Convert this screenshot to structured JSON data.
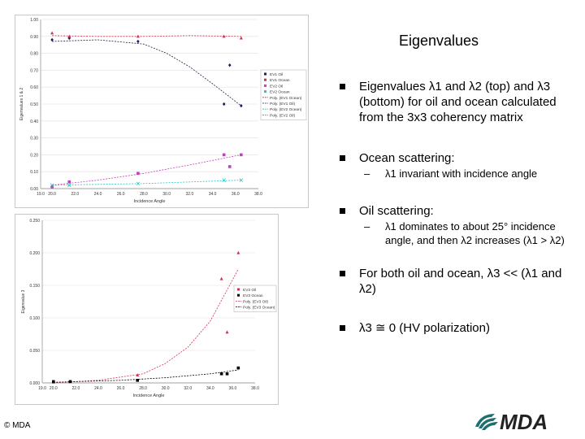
{
  "slide": {
    "title": "Eigenvalues",
    "copyright": "© MDA",
    "logo_text": "MDA"
  },
  "bullets": [
    {
      "text": "Eigenvalues λ1 and λ2 (top) and λ3 (bottom) for oil and ocean calculated from the 3x3 coherency matrix"
    },
    {
      "text": "Ocean scattering:",
      "sub": "λ1 invariant with incidence angle"
    },
    {
      "text": "Oil scattering:",
      "sub": "λ1 dominates to about 25° incidence angle, and then λ2 increases (λ1 > λ2)"
    },
    {
      "text": "For both oil and ocean, λ3 << (λ1 and λ2)"
    },
    {
      "text": "λ3 ≅ 0 (HV polarization)"
    }
  ],
  "chart_data": [
    {
      "type": "scatter",
      "xlabel": "Incidence Angle",
      "ylabel": "Eigenvalues 1 & 2",
      "xlim": [
        19.0,
        38.0
      ],
      "ylim": [
        0.0,
        1.0
      ],
      "x_ticks": [
        "19.0",
        "20.0",
        "22.0",
        "24.0",
        "26.0",
        "28.0",
        "30.0",
        "32.0",
        "34.0",
        "36.0",
        "38.0"
      ],
      "y_ticks": [
        "0.00",
        "0.10",
        "0.20",
        "0.30",
        "0.40",
        "0.50",
        "0.60",
        "0.70",
        "0.80",
        "0.90",
        "1.00"
      ],
      "legend_position": "right",
      "series": [
        {
          "name": "EV1 Oil",
          "color": "#1a1a6e",
          "marker": "diamond",
          "x": [
            20.0,
            21.5,
            27.5,
            35.0,
            35.5,
            36.5
          ],
          "y": [
            0.88,
            0.89,
            0.87,
            0.5,
            0.73,
            0.49
          ]
        },
        {
          "name": "EV1 Ocean",
          "color": "#d03050",
          "marker": "triangle",
          "x": [
            20.0,
            21.5,
            27.5,
            35.0,
            36.5
          ],
          "y": [
            0.92,
            0.9,
            0.9,
            0.9,
            0.89
          ]
        },
        {
          "name": "EV2 Oil",
          "color": "#c040c0",
          "marker": "square",
          "x": [
            20.0,
            21.5,
            27.5,
            35.0,
            35.5,
            36.5
          ],
          "y": [
            0.01,
            0.04,
            0.09,
            0.2,
            0.13,
            0.2
          ]
        },
        {
          "name": "EV2 Ocean",
          "color": "#30c0c0",
          "marker": "cross",
          "x": [
            20.0,
            21.5,
            27.5,
            35.0,
            36.5
          ],
          "y": [
            0.02,
            0.02,
            0.03,
            0.05,
            0.05
          ]
        }
      ],
      "trendlines": [
        {
          "name": "Poly. (EV1 Ocean)",
          "color": "#d03050",
          "x": [
            20,
            24,
            28,
            32,
            36.5
          ],
          "y": [
            0.905,
            0.9,
            0.9,
            0.905,
            0.9
          ]
        },
        {
          "name": "Poly. (EV1 Oil)",
          "color": "#222244",
          "x": [
            20,
            24,
            28,
            30,
            32,
            34,
            36.5
          ],
          "y": [
            0.87,
            0.88,
            0.855,
            0.8,
            0.72,
            0.62,
            0.49
          ]
        },
        {
          "name": "Poly. (EV2 Ocean)",
          "color": "#30c0c0",
          "x": [
            20,
            28,
            36.5
          ],
          "y": [
            0.02,
            0.03,
            0.05
          ]
        },
        {
          "name": "Poly. (EV2 Oil)",
          "color": "#c040c0",
          "x": [
            20,
            24,
            28,
            32,
            36.5
          ],
          "y": [
            0.02,
            0.05,
            0.09,
            0.14,
            0.2
          ]
        }
      ]
    },
    {
      "type": "scatter",
      "xlabel": "Incidence Angle",
      "ylabel": "Eigenvalue 3",
      "xlim": [
        19.0,
        38.0
      ],
      "ylim": [
        0.0,
        0.25
      ],
      "x_ticks": [
        "19.0",
        "20.0",
        "22.0",
        "24.0",
        "26.0",
        "28.0",
        "30.0",
        "32.0",
        "34.0",
        "36.0",
        "38.0"
      ],
      "y_ticks": [
        "0.000",
        "0.050",
        "0.100",
        "0.150",
        "0.200",
        "0.250"
      ],
      "legend_position": "right",
      "series": [
        {
          "name": "EV3 Oil",
          "color": "#d03050",
          "marker": "triangle",
          "x": [
            20.0,
            21.5,
            27.5,
            35.0,
            35.5,
            36.5
          ],
          "y": [
            0.001,
            0.002,
            0.012,
            0.16,
            0.078,
            0.2
          ]
        },
        {
          "name": "EV3 Ocean",
          "color": "#000000",
          "marker": "square",
          "x": [
            20.0,
            21.5,
            27.5,
            35.0,
            35.5,
            36.5
          ],
          "y": [
            0.002,
            0.002,
            0.004,
            0.014,
            0.014,
            0.023
          ]
        }
      ],
      "trendlines": [
        {
          "name": "Poly. (EV3 Oil)",
          "color": "#d03050",
          "x": [
            20,
            24,
            28,
            30,
            32,
            34,
            36.5
          ],
          "y": [
            0.0,
            0.004,
            0.014,
            0.03,
            0.055,
            0.095,
            0.175
          ]
        },
        {
          "name": "Poly. (EV3 Ocean)",
          "color": "#000000",
          "x": [
            20,
            26,
            30,
            34,
            36.5
          ],
          "y": [
            0.001,
            0.004,
            0.008,
            0.014,
            0.02
          ]
        }
      ]
    }
  ]
}
